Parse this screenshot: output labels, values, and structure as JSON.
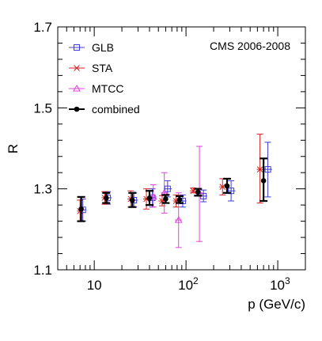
{
  "chart_data": {
    "type": "scatter",
    "title": "",
    "annotation": "CMS 2006-2008",
    "xlabel": "p (GeV/c)",
    "ylabel": "R",
    "xscale": "log",
    "xlim": [
      4,
      2000
    ],
    "ylim": [
      1.1,
      1.7
    ],
    "x_ticks": [
      {
        "value": 10,
        "label": "10"
      },
      {
        "value": 100,
        "label": "10^2"
      },
      {
        "value": 1000,
        "label": "10^3"
      }
    ],
    "y_ticks": [
      {
        "value": 1.1,
        "label": "1.1"
      },
      {
        "value": 1.3,
        "label": "1.3"
      },
      {
        "value": 1.5,
        "label": "1.5"
      },
      {
        "value": 1.7,
        "label": "1.7"
      }
    ],
    "grid": false,
    "legend_position": "top-left",
    "series": [
      {
        "name": "GLB",
        "color": "#3b3bd6",
        "marker": "open-square",
        "points": [
          {
            "x": 7.5,
            "y": 1.248,
            "ylo": 1.22,
            "yhi": 1.275,
            "xlo": 6.8,
            "xhi": 8.2
          },
          {
            "x": 14,
            "y": 1.278,
            "ylo": 1.262,
            "yhi": 1.293,
            "xlo": 12.5,
            "xhi": 15.5
          },
          {
            "x": 27,
            "y": 1.272,
            "ylo": 1.255,
            "yhi": 1.29,
            "xlo": 24,
            "xhi": 30
          },
          {
            "x": 43,
            "y": 1.278,
            "ylo": 1.255,
            "yhi": 1.3,
            "xlo": 39,
            "xhi": 47
          },
          {
            "x": 63,
            "y": 1.3,
            "ylo": 1.28,
            "yhi": 1.32,
            "xlo": 57,
            "xhi": 70
          },
          {
            "x": 92,
            "y": 1.27,
            "ylo": 1.255,
            "yhi": 1.285,
            "xlo": 84,
            "xhi": 101
          },
          {
            "x": 155,
            "y": 1.282,
            "ylo": 1.268,
            "yhi": 1.297,
            "xlo": 140,
            "xhi": 170
          },
          {
            "x": 310,
            "y": 1.295,
            "ylo": 1.27,
            "yhi": 1.32,
            "xlo": 280,
            "xhi": 345
          },
          {
            "x": 780,
            "y": 1.348,
            "ylo": 1.28,
            "yhi": 1.415,
            "xlo": 700,
            "xhi": 870
          }
        ]
      },
      {
        "name": "STA",
        "color": "#d42020",
        "marker": "x",
        "points": [
          {
            "x": 7.0,
            "y": 1.245,
            "ylo": 1.22,
            "yhi": 1.272,
            "xlo": 6.5,
            "xhi": 7.5
          },
          {
            "x": 13,
            "y": 1.278,
            "ylo": 1.262,
            "yhi": 1.293,
            "xlo": 12,
            "xhi": 14
          },
          {
            "x": 25,
            "y": 1.275,
            "ylo": 1.255,
            "yhi": 1.295,
            "xlo": 23,
            "xhi": 27
          },
          {
            "x": 37,
            "y": 1.275,
            "ylo": 1.25,
            "yhi": 1.3,
            "xlo": 34,
            "xhi": 40
          },
          {
            "x": 55,
            "y": 1.27,
            "ylo": 1.258,
            "yhi": 1.283,
            "xlo": 50,
            "xhi": 60
          },
          {
            "x": 78,
            "y": 1.27,
            "ylo": 1.255,
            "yhi": 1.285,
            "xlo": 72,
            "xhi": 84
          },
          {
            "x": 120,
            "y": 1.295,
            "ylo": 1.29,
            "yhi": 1.302,
            "xlo": 110,
            "xhi": 130
          },
          {
            "x": 250,
            "y": 1.305,
            "ylo": 1.285,
            "yhi": 1.325,
            "xlo": 230,
            "xhi": 270
          },
          {
            "x": 640,
            "y": 1.348,
            "ylo": 1.265,
            "yhi": 1.435,
            "xlo": 590,
            "xhi": 690
          }
        ]
      },
      {
        "name": "MTCC",
        "color": "#e040e0",
        "marker": "open-triangle",
        "points": [
          {
            "x": 44,
            "y": 1.28,
            "ylo": 1.255,
            "yhi": 1.31,
            "xlo": 40,
            "xhi": 48
          },
          {
            "x": 58,
            "y": 1.29,
            "ylo": 1.24,
            "yhi": 1.34,
            "xlo": 53,
            "xhi": 63
          },
          {
            "x": 83,
            "y": 1.223,
            "ylo": 1.155,
            "yhi": 1.29,
            "xlo": 76,
            "xhi": 90
          },
          {
            "x": 140,
            "y": 1.29,
            "ylo": 1.17,
            "yhi": 1.405,
            "xlo": 128,
            "xhi": 152
          }
        ]
      },
      {
        "name": "combined",
        "color": "#000000",
        "marker": "filled-circle",
        "points": [
          {
            "x": 7.2,
            "y": 1.25,
            "ylo": 1.22,
            "yhi": 1.28
          },
          {
            "x": 13.5,
            "y": 1.277,
            "ylo": 1.265,
            "yhi": 1.29
          },
          {
            "x": 26,
            "y": 1.272,
            "ylo": 1.255,
            "yhi": 1.29
          },
          {
            "x": 40,
            "y": 1.277,
            "ylo": 1.26,
            "yhi": 1.295
          },
          {
            "x": 60,
            "y": 1.275,
            "ylo": 1.265,
            "yhi": 1.285
          },
          {
            "x": 85,
            "y": 1.273,
            "ylo": 1.265,
            "yhi": 1.282
          },
          {
            "x": 135,
            "y": 1.292,
            "ylo": 1.283,
            "yhi": 1.3
          },
          {
            "x": 280,
            "y": 1.307,
            "ylo": 1.29,
            "yhi": 1.325
          },
          {
            "x": 700,
            "y": 1.32,
            "ylo": 1.27,
            "yhi": 1.375
          }
        ]
      }
    ]
  }
}
